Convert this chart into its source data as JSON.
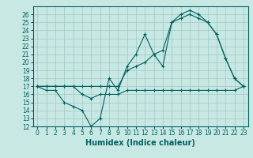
{
  "xlabel": "Humidex (Indice chaleur)",
  "bg_color": "#c8e8e4",
  "grid_color": "#a0c8c4",
  "line_color": "#006060",
  "xlim": [
    -0.5,
    23.5
  ],
  "ylim": [
    12,
    27
  ],
  "yticks": [
    12,
    13,
    14,
    15,
    16,
    17,
    18,
    19,
    20,
    21,
    22,
    23,
    24,
    25,
    26
  ],
  "xticks": [
    0,
    1,
    2,
    3,
    4,
    5,
    6,
    7,
    8,
    9,
    10,
    11,
    12,
    13,
    14,
    15,
    16,
    17,
    18,
    19,
    20,
    21,
    22,
    23
  ],
  "line1_x": [
    0,
    1,
    2,
    3,
    4,
    5,
    6,
    7,
    8,
    9,
    10,
    11,
    12,
    13,
    14,
    15,
    16,
    17,
    18,
    19,
    20,
    21,
    22,
    23
  ],
  "line1_y": [
    17,
    16.5,
    16.5,
    15,
    14.5,
    14,
    12,
    13,
    18,
    16.5,
    19.5,
    21,
    23.5,
    21,
    19.5,
    25,
    26,
    26.5,
    26,
    25,
    23.5,
    20.5,
    18,
    17
  ],
  "line2_x": [
    0,
    1,
    2,
    3,
    4,
    5,
    6,
    7,
    8,
    9,
    10,
    11,
    12,
    13,
    14,
    15,
    16,
    17,
    18,
    19,
    20,
    21,
    22,
    23
  ],
  "line2_y": [
    17,
    17,
    17,
    17,
    17,
    17,
    17,
    17,
    17,
    17,
    19,
    19.5,
    20,
    21,
    21.5,
    25,
    25.5,
    26,
    25.5,
    25,
    23.5,
    20.5,
    18,
    17
  ],
  "line3_x": [
    0,
    1,
    2,
    3,
    4,
    5,
    6,
    7,
    8,
    9,
    10,
    11,
    12,
    13,
    14,
    15,
    16,
    17,
    18,
    19,
    20,
    21,
    22,
    23
  ],
  "line3_y": [
    17,
    17,
    17,
    17,
    17,
    16,
    15.5,
    16,
    16,
    16,
    16.5,
    16.5,
    16.5,
    16.5,
    16.5,
    16.5,
    16.5,
    16.5,
    16.5,
    16.5,
    16.5,
    16.5,
    16.5,
    17
  ],
  "tick_fontsize": 5.5,
  "xlabel_fontsize": 7.0
}
